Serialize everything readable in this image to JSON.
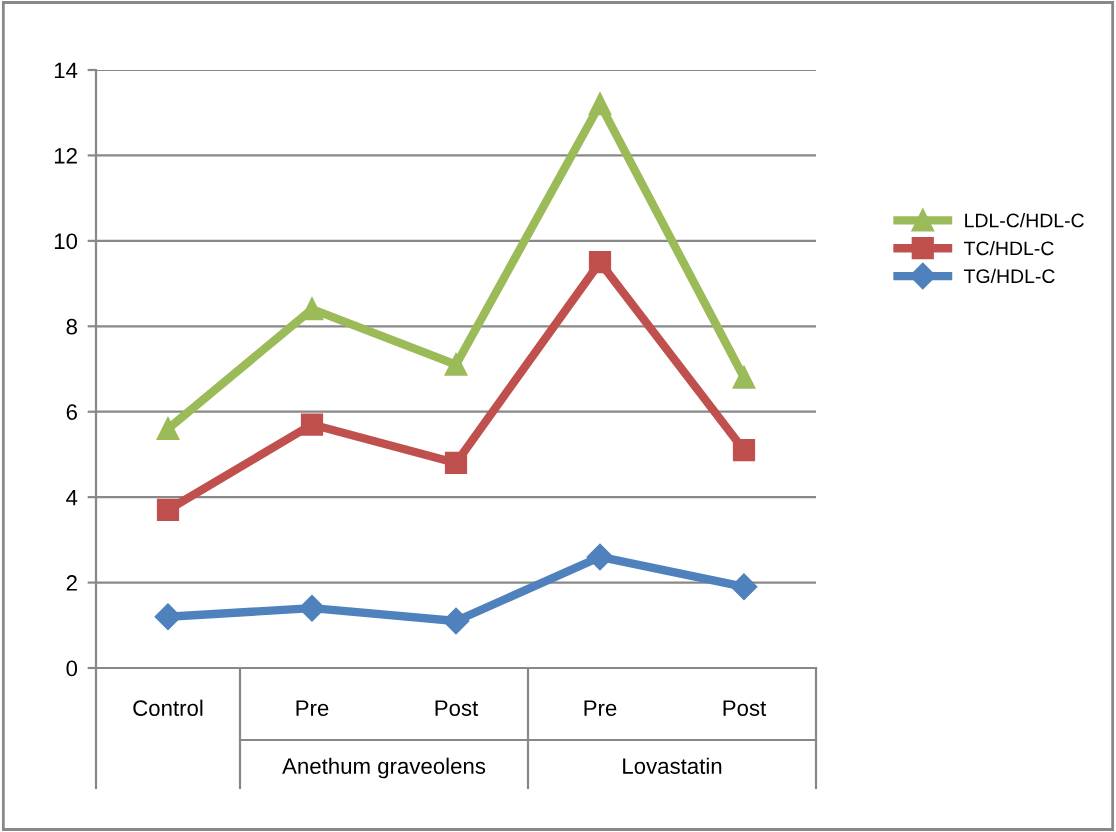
{
  "chart_data": {
    "type": "line",
    "categories": [
      "Control",
      "Pre",
      "Post",
      "Pre",
      "Post"
    ],
    "series": [
      {
        "name": "LDL-C/HDL-C",
        "color": "#9bbb59",
        "marker": "triangle",
        "values": [
          5.6,
          8.4,
          7.1,
          13.2,
          6.8
        ]
      },
      {
        "name": "TC/HDL-C",
        "color": "#c0504d",
        "marker": "square",
        "values": [
          3.7,
          5.7,
          4.8,
          9.5,
          5.1
        ]
      },
      {
        "name": "TG/HDL-C",
        "color": "#4f81bd",
        "marker": "diamond",
        "values": [
          1.2,
          1.4,
          1.1,
          2.6,
          1.9
        ]
      }
    ],
    "annotations": [
      "Anethum graveolens",
      "Lovastatin"
    ],
    "ylim": [
      0,
      14
    ],
    "yticks": [
      0,
      2,
      4,
      6,
      8,
      10,
      12,
      14
    ],
    "grid": "y",
    "legend": "right"
  }
}
